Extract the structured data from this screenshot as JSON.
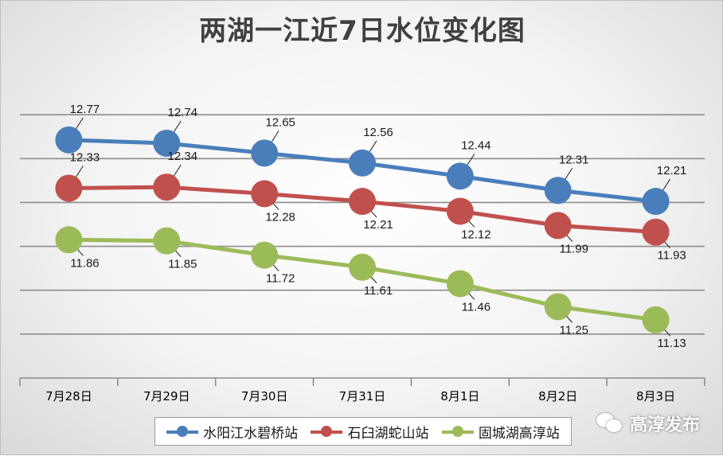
{
  "chart_data": {
    "type": "line",
    "title": "两湖一江近7日水位变化图",
    "categories": [
      "7月28日",
      "7月29日",
      "7月30日",
      "7月31日",
      "8月1日",
      "8月2日",
      "8月3日"
    ],
    "ylim": [
      10.6,
      13.4
    ],
    "grid": true,
    "legend_position": "bottom",
    "series": [
      {
        "name": "水阳江水碧桥站",
        "color": "#4a7ebb",
        "values": [
          12.77,
          12.74,
          12.65,
          12.56,
          12.44,
          12.31,
          12.21
        ],
        "labels": [
          "12.77",
          "12.74",
          "12.65",
          "12.56",
          "12.44",
          "12.31",
          "12.21"
        ]
      },
      {
        "name": "石臼湖蛇山站",
        "color": "#c0504d",
        "values": [
          12.33,
          12.34,
          12.28,
          12.21,
          12.12,
          11.99,
          11.93
        ],
        "labels": [
          "12.33",
          "12.34",
          "12.28",
          "12.21",
          "12.12",
          "11.99",
          "11.93"
        ]
      },
      {
        "name": "固城湖高淳站",
        "color": "#9bbb59",
        "values": [
          11.86,
          11.85,
          11.72,
          11.61,
          11.46,
          11.25,
          11.13
        ],
        "labels": [
          "11.86",
          "11.85",
          "11.72",
          "11.61",
          "11.46",
          "11.25",
          "11.13"
        ]
      }
    ]
  },
  "watermark": {
    "icon": "wechat-icon",
    "text": "高淳发布"
  }
}
